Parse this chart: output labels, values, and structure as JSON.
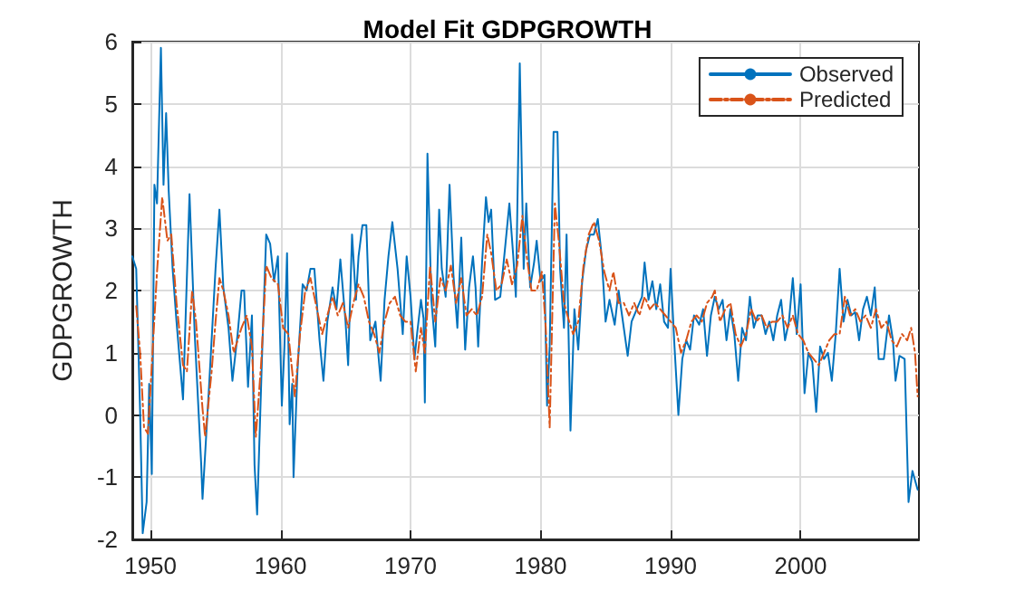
{
  "chart_data": {
    "type": "line",
    "title": "Model Fit GDPGROWTH",
    "ylabel": "GDPGROWTH",
    "xlim": [
      1948.6,
      2009.1
    ],
    "xticks": [
      1950,
      1960,
      1970,
      1980,
      1990,
      2000
    ],
    "ylim": [
      -2,
      6
    ],
    "yticks": [
      -2,
      -1,
      0,
      1,
      2,
      3,
      4,
      5,
      6
    ],
    "grid": true,
    "legend": "top right",
    "marker": "none",
    "series": [
      {
        "name": "Observed",
        "color": "#0072bd",
        "line_style": "solid",
        "x": [
          1948.6,
          1948.9,
          1949.2,
          1949.4,
          1949.7,
          1949.9,
          1950.1,
          1950.3,
          1950.5,
          1950.8,
          1951.0,
          1951.2,
          1951.4,
          1951.7,
          1952.0,
          1952.5,
          1953.0,
          1953.4,
          1953.9,
          1954.0,
          1954.5,
          1955.0,
          1955.3,
          1955.6,
          1956.0,
          1956.3,
          1956.7,
          1957.0,
          1957.2,
          1957.5,
          1957.8,
          1958.0,
          1958.2,
          1958.6,
          1958.9,
          1959.2,
          1959.5,
          1959.8,
          1960.1,
          1960.3,
          1960.5,
          1960.7,
          1960.9,
          1961.0,
          1961.3,
          1961.7,
          1962.0,
          1962.3,
          1962.6,
          1963.0,
          1963.3,
          1963.6,
          1964.0,
          1964.3,
          1964.6,
          1965.0,
          1965.2,
          1965.5,
          1965.8,
          1966.0,
          1966.3,
          1966.6,
          1966.9,
          1967.3,
          1967.7,
          1968.0,
          1968.3,
          1968.6,
          1969.0,
          1969.4,
          1969.7,
          1970.0,
          1970.3,
          1970.5,
          1970.8,
          1971.0,
          1971.1,
          1971.3,
          1971.6,
          1971.9,
          1972.2,
          1972.4,
          1972.7,
          1973.0,
          1973.3,
          1973.6,
          1973.9,
          1974.2,
          1974.5,
          1974.8,
          1975.0,
          1975.2,
          1975.5,
          1975.8,
          1976.0,
          1976.2,
          1976.5,
          1976.9,
          1977.3,
          1977.6,
          1977.9,
          1978.1,
          1978.4,
          1978.7,
          1978.9,
          1979.2,
          1979.5,
          1979.7,
          1980.0,
          1980.3,
          1980.5,
          1980.7,
          1981.0,
          1981.3,
          1981.5,
          1981.8,
          1982.0,
          1982.3,
          1982.6,
          1982.9,
          1983.2,
          1983.5,
          1983.8,
          1984.1,
          1984.4,
          1984.7,
          1985.0,
          1985.3,
          1985.7,
          1986.0,
          1986.4,
          1986.7,
          1987.0,
          1987.4,
          1987.8,
          1988.0,
          1988.3,
          1988.6,
          1988.9,
          1989.2,
          1989.5,
          1989.8,
          1990.0,
          1990.3,
          1990.6,
          1990.9,
          1991.2,
          1991.5,
          1991.8,
          1992.2,
          1992.5,
          1992.8,
          1993.1,
          1993.4,
          1993.7,
          1994.0,
          1994.3,
          1994.6,
          1994.9,
          1995.2,
          1995.5,
          1995.8,
          1996.1,
          1996.4,
          1996.7,
          1997.0,
          1997.3,
          1997.6,
          1997.9,
          1998.2,
          1998.5,
          1998.8,
          1999.1,
          1999.4,
          1999.7,
          2000.0,
          2000.3,
          2000.6,
          2000.9,
          2001.2,
          2001.5,
          2001.8,
          2002.1,
          2002.4,
          2002.7,
          2003.0,
          2003.3,
          2003.6,
          2003.9,
          2004.2,
          2004.5,
          2004.8,
          2005.1,
          2005.4,
          2005.7,
          2006.0,
          2006.4,
          2006.8,
          2007.1,
          2007.3,
          2007.6,
          2008.0,
          2008.3,
          2008.6,
          2009.0
        ],
        "values": [
          2.55,
          2.35,
          0.05,
          -1.9,
          -1.4,
          0.5,
          -0.95,
          3.7,
          3.4,
          5.9,
          3.7,
          4.85,
          3.6,
          2.35,
          1.5,
          0.25,
          3.55,
          1.3,
          -0.8,
          -1.35,
          0.45,
          2.35,
          3.3,
          2.05,
          1.4,
          0.55,
          1.3,
          2.0,
          2.0,
          0.45,
          1.6,
          -0.8,
          -1.6,
          1.1,
          2.9,
          2.75,
          2.15,
          2.55,
          0.15,
          1.1,
          2.6,
          -0.15,
          0.5,
          -1.0,
          0.7,
          2.1,
          2.0,
          2.35,
          2.35,
          1.2,
          0.55,
          1.5,
          2.05,
          1.7,
          2.5,
          1.5,
          0.8,
          2.9,
          1.85,
          2.55,
          3.05,
          3.05,
          1.2,
          1.5,
          0.55,
          1.85,
          2.55,
          3.1,
          2.35,
          1.3,
          2.55,
          1.9,
          0.9,
          1.3,
          1.85,
          1.55,
          0.2,
          4.2,
          1.85,
          1.1,
          3.3,
          2.35,
          1.9,
          3.7,
          2.25,
          1.4,
          2.85,
          1.05,
          2.05,
          2.55,
          2.05,
          1.1,
          2.45,
          3.5,
          3.1,
          3.3,
          1.85,
          1.9,
          2.75,
          3.4,
          2.55,
          1.9,
          5.65,
          2.35,
          3.4,
          2.05,
          2.45,
          2.8,
          2.15,
          2.25,
          0.15,
          1.1,
          4.55,
          4.55,
          2.35,
          1.4,
          2.9,
          -0.25,
          1.7,
          1.05,
          2.15,
          2.65,
          2.9,
          2.9,
          3.15,
          2.55,
          1.5,
          1.85,
          1.45,
          2.0,
          1.4,
          0.95,
          1.5,
          1.7,
          1.9,
          2.45,
          1.85,
          2.15,
          1.7,
          2.1,
          1.5,
          1.4,
          2.35,
          1.1,
          0.0,
          0.9,
          1.2,
          1.05,
          1.6,
          1.45,
          1.7,
          0.95,
          1.6,
          1.9,
          1.7,
          1.85,
          1.2,
          1.7,
          1.3,
          0.55,
          1.4,
          1.2,
          1.9,
          1.4,
          1.6,
          1.6,
          1.3,
          1.5,
          1.2,
          1.6,
          1.85,
          1.2,
          1.5,
          2.2,
          1.3,
          2.1,
          0.35,
          1.0,
          0.85,
          0.05,
          1.1,
          0.9,
          1.0,
          0.55,
          1.3,
          2.35,
          1.5,
          1.85,
          1.6,
          1.65,
          1.2,
          1.7,
          1.9,
          1.6,
          2.05,
          0.9,
          0.9,
          1.6,
          1.2,
          0.55,
          0.95,
          0.9,
          -1.4,
          -0.9,
          -1.2
        ]
      },
      {
        "name": "Predicted",
        "color": "#d95319",
        "line_style": "dashed",
        "x": [
          1948.9,
          1949.2,
          1949.5,
          1949.8,
          1950.1,
          1950.5,
          1950.9,
          1951.3,
          1951.6,
          1952.0,
          1952.5,
          1952.8,
          1953.2,
          1953.5,
          1954.0,
          1954.2,
          1954.7,
          1955.0,
          1955.3,
          1955.6,
          1956.0,
          1956.4,
          1957.0,
          1957.4,
          1957.8,
          1958.1,
          1958.5,
          1958.9,
          1959.3,
          1959.8,
          1960.2,
          1960.6,
          1961.1,
          1961.5,
          1961.9,
          1962.3,
          1962.7,
          1963.2,
          1963.6,
          1964.0,
          1964.4,
          1964.8,
          1965.2,
          1965.6,
          1966.0,
          1966.4,
          1966.8,
          1967.2,
          1967.6,
          1968.0,
          1968.4,
          1968.8,
          1969.2,
          1969.6,
          1970.0,
          1970.4,
          1970.8,
          1971.1,
          1971.5,
          1971.9,
          1972.3,
          1972.7,
          1973.1,
          1973.5,
          1973.9,
          1974.3,
          1974.7,
          1975.1,
          1975.5,
          1975.9,
          1976.2,
          1976.6,
          1977.0,
          1977.4,
          1977.8,
          1978.2,
          1978.6,
          1978.9,
          1979.3,
          1979.7,
          1980.1,
          1980.4,
          1980.7,
          1981.0,
          1981.1,
          1981.4,
          1981.8,
          1982.2,
          1982.5,
          1982.9,
          1983.3,
          1983.7,
          1984.1,
          1984.5,
          1984.9,
          1985.3,
          1985.6,
          1986.0,
          1986.4,
          1986.8,
          1987.2,
          1987.6,
          1988.0,
          1988.4,
          1988.8,
          1989.2,
          1989.6,
          1990.0,
          1990.4,
          1990.8,
          1991.2,
          1991.6,
          1992.0,
          1992.4,
          1992.8,
          1993.2,
          1993.4,
          1993.8,
          1994.2,
          1994.6,
          1995.0,
          1995.4,
          1995.8,
          1996.2,
          1996.6,
          1997.0,
          1997.4,
          1997.8,
          1998.2,
          1998.6,
          1999.0,
          1999.4,
          1999.8,
          2000.2,
          2000.6,
          2001.0,
          2001.4,
          2001.8,
          2002.2,
          2002.6,
          2003.0,
          2003.4,
          2003.8,
          2004.2,
          2004.6,
          2005.0,
          2005.4,
          2005.8,
          2006.2,
          2006.6,
          2007.0,
          2007.4,
          2007.8,
          2008.2,
          2008.5,
          2008.8,
          2009.0
        ],
        "values": [
          1.75,
          1.0,
          -0.2,
          -0.3,
          0.8,
          2.3,
          3.5,
          2.8,
          2.9,
          1.8,
          0.8,
          0.7,
          2.0,
          1.5,
          0.1,
          -0.35,
          0.7,
          1.5,
          2.2,
          2.0,
          1.6,
          1.0,
          1.4,
          1.6,
          1.1,
          -0.35,
          0.8,
          2.4,
          2.2,
          2.1,
          1.4,
          1.3,
          0.3,
          1.3,
          2.0,
          2.2,
          1.8,
          1.3,
          1.6,
          1.9,
          1.6,
          1.8,
          1.4,
          1.8,
          2.1,
          1.9,
          1.5,
          1.3,
          1.0,
          1.5,
          1.8,
          1.9,
          1.6,
          1.5,
          1.5,
          0.7,
          1.4,
          1.0,
          2.4,
          1.5,
          2.2,
          2.0,
          2.4,
          1.8,
          2.2,
          1.6,
          1.7,
          1.6,
          1.9,
          2.9,
          2.6,
          2.0,
          2.1,
          2.5,
          2.1,
          2.4,
          3.2,
          2.6,
          2.0,
          2.0,
          2.3,
          1.4,
          -0.2,
          2.5,
          3.4,
          2.8,
          1.8,
          1.5,
          1.3,
          1.5,
          2.4,
          2.9,
          3.1,
          2.8,
          2.3,
          2.0,
          2.3,
          1.8,
          1.8,
          1.6,
          1.8,
          1.6,
          1.9,
          1.7,
          1.8,
          1.7,
          1.6,
          1.5,
          1.4,
          1.0,
          1.2,
          1.5,
          1.6,
          1.5,
          1.8,
          1.9,
          2.0,
          1.5,
          1.7,
          1.8,
          1.3,
          1.1,
          1.3,
          1.7,
          1.5,
          1.6,
          1.4,
          1.5,
          1.5,
          1.6,
          1.4,
          1.6,
          1.3,
          1.2,
          1.0,
          0.9,
          0.8,
          1.0,
          1.2,
          1.3,
          1.3,
          1.9,
          1.6,
          1.7,
          1.5,
          1.6,
          1.4,
          1.7,
          1.4,
          1.5,
          1.2,
          1.1,
          1.3,
          1.2,
          1.4,
          1.0,
          0.3
        ]
      }
    ]
  }
}
